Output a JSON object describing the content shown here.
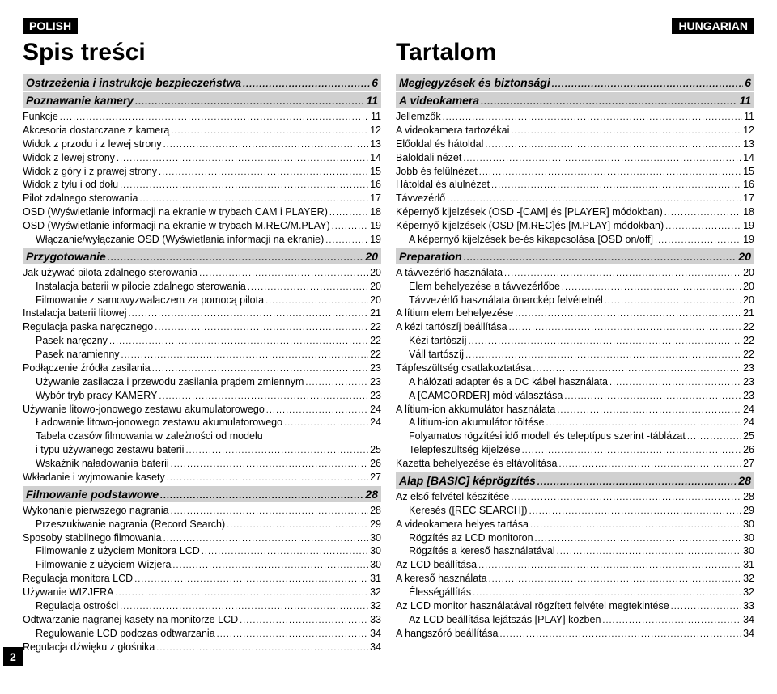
{
  "pageNumber": "2",
  "left": {
    "langTag": "POLISH",
    "title": "Spis treści",
    "sections": [
      {
        "type": "head",
        "label": "Ostrzeżenia i instrukcje bezpieczeństwa",
        "page": "6"
      },
      {
        "type": "head",
        "label": "Poznawanie kamery",
        "page": "11"
      },
      {
        "type": "item",
        "indent": 0,
        "label": "Funkcje",
        "page": "11"
      },
      {
        "type": "item",
        "indent": 0,
        "label": "Akcesoria dostarczane z kamerą",
        "page": "12"
      },
      {
        "type": "item",
        "indent": 0,
        "label": "Widok z przodu i z lewej strony",
        "page": "13"
      },
      {
        "type": "item",
        "indent": 0,
        "label": "Widok z lewej strony",
        "page": "14"
      },
      {
        "type": "item",
        "indent": 0,
        "label": "Widok z góry i z prawej strony",
        "page": "15"
      },
      {
        "type": "item",
        "indent": 0,
        "label": "Widok z tyłu i od dołu",
        "page": "16"
      },
      {
        "type": "item",
        "indent": 0,
        "label": "Pilot zdalnego sterowania",
        "page": "17"
      },
      {
        "type": "item",
        "indent": 0,
        "label": "OSD (Wyświetlanie informacji na ekranie w trybach CAM i PLAYER)",
        "page": "18"
      },
      {
        "type": "item",
        "indent": 0,
        "label": "OSD (Wyświetlanie informacji na ekranie w trybach M.REC/M.PLAY)",
        "page": "19"
      },
      {
        "type": "item",
        "indent": 1,
        "label": "Włączanie/wyłączanie OSD (Wyświetlania informacji na ekranie)",
        "page": "19"
      },
      {
        "type": "head",
        "label": "Przygotowanie",
        "page": "20"
      },
      {
        "type": "item",
        "indent": 0,
        "label": "Jak używać pilota zdalnego sterowania",
        "page": "20"
      },
      {
        "type": "item",
        "indent": 1,
        "label": "Instalacja baterii w pilocie zdalnego sterowania",
        "page": "20"
      },
      {
        "type": "item",
        "indent": 1,
        "label": "Filmowanie z samowyzwalaczem za pomocą pilota",
        "page": "20"
      },
      {
        "type": "item",
        "indent": 0,
        "label": "Instalacja baterii litowej",
        "page": "21"
      },
      {
        "type": "item",
        "indent": 0,
        "label": "Regulacja paska naręcznego",
        "page": "22"
      },
      {
        "type": "item",
        "indent": 1,
        "label": "Pasek naręczny",
        "page": "22"
      },
      {
        "type": "item",
        "indent": 1,
        "label": "Pasek naramienny",
        "page": "22"
      },
      {
        "type": "item",
        "indent": 0,
        "label": "Podłączenie źródła zasilania",
        "page": "23"
      },
      {
        "type": "item",
        "indent": 1,
        "label": "Używanie zasilacza i przewodu zasilania prądem zmiennym",
        "page": "23"
      },
      {
        "type": "item",
        "indent": 1,
        "label": "Wybór tryb pracy KAMERY",
        "page": "23"
      },
      {
        "type": "item",
        "indent": 0,
        "label": "Używanie litowo-jonowego zestawu akumulatorowego",
        "page": "24"
      },
      {
        "type": "item",
        "indent": 1,
        "label": "Ładowanie litowo-jonowego zestawu akumulatorowego",
        "page": "24"
      },
      {
        "type": "item",
        "indent": 1,
        "label": "Tabela czasów filmowania w zależności od modelu",
        "page": ""
      },
      {
        "type": "item",
        "indent": 1,
        "label": "i typu używanego zestawu baterii",
        "page": "25"
      },
      {
        "type": "item",
        "indent": 1,
        "label": "Wskaźnik naładowania baterii",
        "page": "26"
      },
      {
        "type": "item",
        "indent": 0,
        "label": "Wkładanie i wyjmowanie kasety",
        "page": "27"
      },
      {
        "type": "head",
        "label": "Filmowanie podstawowe",
        "page": "28"
      },
      {
        "type": "item",
        "indent": 0,
        "label": "Wykonanie pierwszego nagrania",
        "page": "28"
      },
      {
        "type": "item",
        "indent": 1,
        "label": "Przeszukiwanie nagrania (Record Search)",
        "page": "29"
      },
      {
        "type": "item",
        "indent": 0,
        "label": "Sposoby stabilnego filmowania",
        "page": "30"
      },
      {
        "type": "item",
        "indent": 1,
        "label": "Filmowanie z użyciem Monitora LCD",
        "page": "30"
      },
      {
        "type": "item",
        "indent": 1,
        "label": "Filmowanie z użyciem Wizjera",
        "page": "30"
      },
      {
        "type": "item",
        "indent": 0,
        "label": "Regulacja monitora LCD",
        "page": "31"
      },
      {
        "type": "item",
        "indent": 0,
        "label": "Używanie WIZJERA",
        "page": "32"
      },
      {
        "type": "item",
        "indent": 1,
        "label": "Regulacja ostrości",
        "page": "32"
      },
      {
        "type": "item",
        "indent": 0,
        "label": "Odtwarzanie nagranej kasety na monitorze LCD",
        "page": "33"
      },
      {
        "type": "item",
        "indent": 1,
        "label": "Regulowanie LCD podczas odtwarzania",
        "page": "34"
      },
      {
        "type": "item",
        "indent": 0,
        "label": "Regulacja dźwięku z głośnika",
        "page": "34"
      }
    ]
  },
  "right": {
    "langTag": "HUNGARIAN",
    "title": "Tartalom",
    "sections": [
      {
        "type": "head",
        "label": "Megjegyzések és biztonsági",
        "page": "6"
      },
      {
        "type": "head",
        "label": "A videokamera",
        "page": "11"
      },
      {
        "type": "item",
        "indent": 0,
        "label": "Jellemzők",
        "page": "11"
      },
      {
        "type": "item",
        "indent": 0,
        "label": "A videokamera tartozékai",
        "page": "12"
      },
      {
        "type": "item",
        "indent": 0,
        "label": "Előoldal és hátoldal",
        "page": "13"
      },
      {
        "type": "item",
        "indent": 0,
        "label": "Baloldali nézet",
        "page": "14"
      },
      {
        "type": "item",
        "indent": 0,
        "label": "Jobb és felülnézet",
        "page": "15"
      },
      {
        "type": "item",
        "indent": 0,
        "label": "Hátoldal és alulnézet",
        "page": "16"
      },
      {
        "type": "item",
        "indent": 0,
        "label": "Távvezérlő",
        "page": "17"
      },
      {
        "type": "item",
        "indent": 0,
        "label": "Képernyő kijelzések (OSD -[CAM] és [PLAYER] módokban)",
        "page": "18"
      },
      {
        "type": "item",
        "indent": 0,
        "label": "Képernyő kijelzések (OSD [M.REC]és [M.PLAY] módokban)",
        "page": "19"
      },
      {
        "type": "item",
        "indent": 1,
        "label": "A képernyő kijelzések be-és kikapcsolása [OSD on/off]",
        "page": "19"
      },
      {
        "type": "head",
        "label": "Preparation",
        "page": "20"
      },
      {
        "type": "item",
        "indent": 0,
        "label": "A távvezérlő használata",
        "page": "20"
      },
      {
        "type": "item",
        "indent": 1,
        "label": "Elem behelyezése a távvezérlőbe",
        "page": "20"
      },
      {
        "type": "item",
        "indent": 1,
        "label": "Távvezérlő használata önarckép felvételnél",
        "page": "20"
      },
      {
        "type": "item",
        "indent": 0,
        "label": "A lítium elem behelyezése",
        "page": "21"
      },
      {
        "type": "item",
        "indent": 0,
        "label": "A kézi tartószíj beállítása",
        "page": "22"
      },
      {
        "type": "item",
        "indent": 1,
        "label": "Kézi tartószíj",
        "page": "22"
      },
      {
        "type": "item",
        "indent": 1,
        "label": "Váll tartószíj",
        "page": "22"
      },
      {
        "type": "item",
        "indent": 0,
        "label": "Tápfeszültség csatlakoztatása",
        "page": "23"
      },
      {
        "type": "item",
        "indent": 1,
        "label": "A hálózati adapter és a DC kábel használata",
        "page": "23"
      },
      {
        "type": "item",
        "indent": 1,
        "label": "A [CAMCORDER] mód választása",
        "page": "23"
      },
      {
        "type": "item",
        "indent": 0,
        "label": "A lítium-ion akkumulátor használata",
        "page": "24"
      },
      {
        "type": "item",
        "indent": 1,
        "label": "A lítium-ion akumulátor töltése",
        "page": "24"
      },
      {
        "type": "item",
        "indent": 1,
        "label": "Folyamatos rögzítési idő modell és teleptípus szerint -táblázat",
        "page": "25"
      },
      {
        "type": "item",
        "indent": 1,
        "label": "Telepfeszültség kijelzése",
        "page": "26"
      },
      {
        "type": "item",
        "indent": 0,
        "label": "Kazetta behelyezése és eltávolítása",
        "page": "27"
      },
      {
        "type": "head",
        "label": "Alap [BASIC] képrögzítés",
        "page": "28"
      },
      {
        "type": "item",
        "indent": 0,
        "label": "Az első felvétel készítése",
        "page": "28"
      },
      {
        "type": "item",
        "indent": 1,
        "label": "Keresés ([REC SEARCH])",
        "page": "29"
      },
      {
        "type": "item",
        "indent": 0,
        "label": "A videokamera helyes tartása",
        "page": "30"
      },
      {
        "type": "item",
        "indent": 1,
        "label": "Rögzítés az LCD monitoron",
        "page": "30"
      },
      {
        "type": "item",
        "indent": 1,
        "label": "Rögzítés a kereső használatával",
        "page": "30"
      },
      {
        "type": "item",
        "indent": 0,
        "label": "Az LCD beállítása",
        "page": "31"
      },
      {
        "type": "item",
        "indent": 0,
        "label": "A kereső használata",
        "page": "32"
      },
      {
        "type": "item",
        "indent": 1,
        "label": "Élességállítás",
        "page": "32"
      },
      {
        "type": "item",
        "indent": 0,
        "label": "Az LCD monitor használatával rögzített felvétel megtekintése",
        "page": "33"
      },
      {
        "type": "item",
        "indent": 1,
        "label": "Az LCD beállítása lejátszás [PLAY] közben",
        "page": "34"
      },
      {
        "type": "item",
        "indent": 0,
        "label": "A hangszóró beállítása",
        "page": "34"
      }
    ]
  }
}
